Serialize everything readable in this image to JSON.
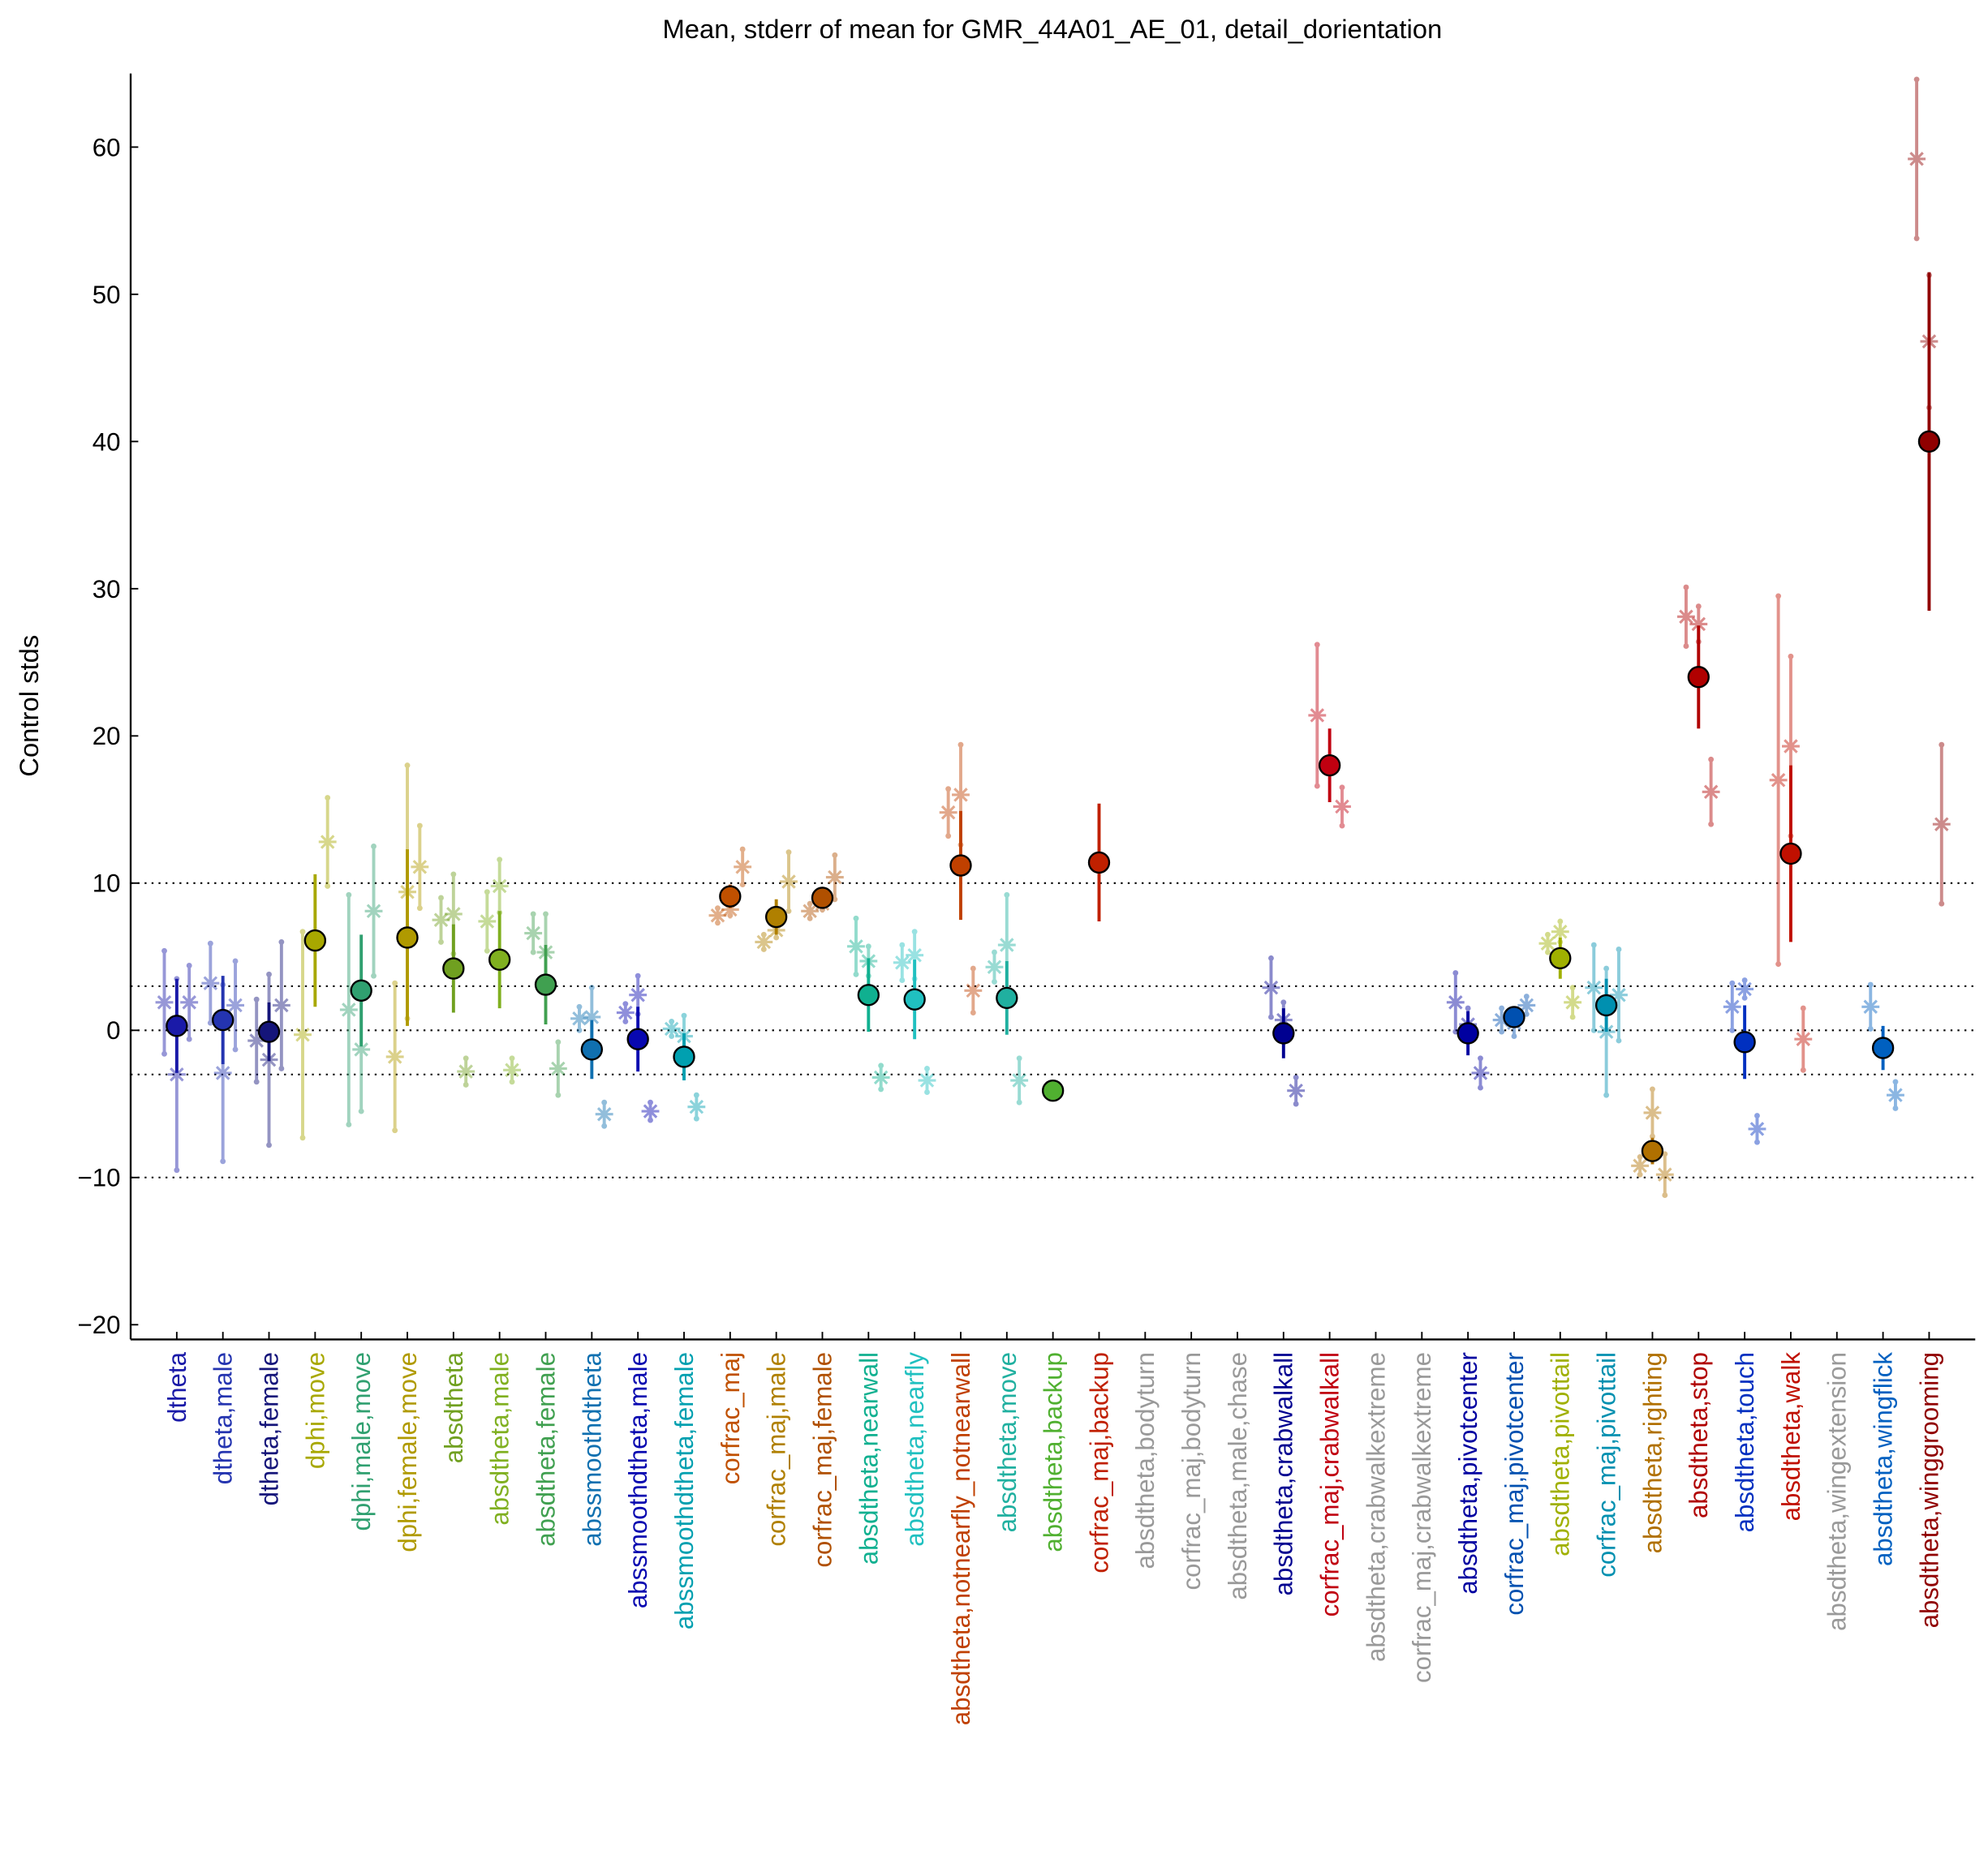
{
  "chart_data": {
    "type": "errorbar",
    "title": "Mean, stderr of mean for GMR_44A01_AE_01, detail_dorientation",
    "ylabel": "Control stds",
    "categories": [
      "dtheta",
      "dtheta,male",
      "dtheta,female",
      "dphi,move",
      "dphi,male,move",
      "dphi,female,move",
      "absdtheta",
      "absdtheta,male",
      "absdtheta,female",
      "abssmoothdtheta",
      "abssmoothdtheta,male",
      "abssmoothdtheta,female",
      "corfrac_maj",
      "corfrac_maj,male",
      "corfrac_maj,female",
      "absdtheta,nearwall",
      "absdtheta,nearfly",
      "absdtheta,notnearfly_notnearwall",
      "absdtheta,move",
      "absdtheta,backup",
      "corfrac_maj,backup",
      "absdtheta,bodyturn",
      "corfrac_maj,bodyturn",
      "absdtheta,male,chase",
      "absdtheta,crabwalkall",
      "corfrac_maj,crabwalkall",
      "absdtheta,crabwalkextreme",
      "corfrac_maj,crabwalkextreme",
      "absdtheta,pivotcenter",
      "corfrac_maj,pivotcenter",
      "absdtheta,pivottail",
      "corfrac_maj,pivottail",
      "absdtheta,righting",
      "absdtheta,stop",
      "absdtheta,touch",
      "absdtheta,walk",
      "absdtheta,wingextension",
      "absdtheta,wingflick",
      "absdtheta,winggrooming"
    ],
    "x": [
      1,
      2,
      3,
      4,
      5,
      6,
      7,
      8,
      9,
      10,
      11,
      12,
      13,
      14,
      15,
      16,
      17,
      18,
      19,
      20,
      21,
      22,
      23,
      24,
      25,
      26,
      27,
      28,
      29,
      30,
      31,
      32,
      33,
      34,
      35,
      36,
      37,
      38,
      39
    ],
    "colors": [
      "#1a1aa8",
      "#2434b0",
      "#15157a",
      "#a8a800",
      "#30a070",
      "#b09a00",
      "#70a020",
      "#80b020",
      "#40a050",
      "#1070b0",
      "#0808b0",
      "#00a0b0",
      "#c05000",
      "#b08000",
      "#b05000",
      "#10b090",
      "#20c0c0",
      "#c04000",
      "#20b0a0",
      "#50b030",
      "#c02000",
      "#999999",
      "#999999",
      "#999999",
      "#000090",
      "#c00010",
      "#999999",
      "#999999",
      "#0000a0",
      "#0050b0",
      "#a0b000",
      "#0090b0",
      "#b07000",
      "#b00000",
      "#0030c0",
      "#c01000",
      "#999999",
      "#0060c0",
      "#900000"
    ],
    "series": [
      {
        "marker": "asterisk",
        "values": [
          1.9,
          3.2,
          -0.7,
          -0.3,
          1.4,
          -1.8,
          7.5,
          7.4,
          6.6,
          0.8,
          1.2,
          0.1,
          7.8,
          6.0,
          8.1,
          5.7,
          4.6,
          14.8,
          4.3,
          null,
          null,
          null,
          null,
          null,
          2.9,
          21.4,
          null,
          null,
          1.9,
          0.7,
          5.9,
          2.9,
          -9.2,
          28.1,
          1.6,
          17.0,
          null,
          1.6,
          59.2
        ],
        "errors": [
          3.5,
          2.7,
          2.8,
          7,
          7.8,
          5,
          1.5,
          2,
          1.3,
          0.8,
          0.6,
          0.5,
          0.5,
          0.5,
          0.5,
          1.9,
          1.2,
          1.6,
          1,
          null,
          null,
          null,
          null,
          null,
          2,
          4.8,
          null,
          null,
          2,
          0.8,
          0.6,
          2.9,
          0.6,
          2,
          1.6,
          12.5,
          null,
          1.5,
          5.4
        ]
      },
      {
        "marker": "asterisk",
        "values": [
          -3.0,
          -2.9,
          -2.0,
          null,
          -1.3,
          9.4,
          7.9,
          9.8,
          5.3,
          0.9,
          2.4,
          -0.4,
          8.2,
          6.8,
          8.6,
          4.7,
          5.1,
          16.0,
          5.8,
          null,
          null,
          null,
          null,
          null,
          0.7,
          null,
          null,
          null,
          0.4,
          0.5,
          6.7,
          -0.1,
          -5.6,
          27.6,
          2.8,
          19.3,
          null,
          null,
          46.8
        ],
        "errors": [
          6.5,
          6,
          5.8,
          null,
          4.2,
          8.6,
          2.7,
          1.8,
          2.6,
          2,
          1.3,
          1.4,
          0.4,
          0.5,
          0.4,
          1,
          1.6,
          3.4,
          3.4,
          null,
          null,
          null,
          null,
          null,
          1.2,
          null,
          null,
          null,
          1.1,
          0.9,
          0.7,
          4.3,
          1.6,
          1.2,
          0.6,
          6.1,
          null,
          null,
          4.5
        ]
      },
      {
        "marker": "asterisk",
        "values": [
          1.9,
          1.7,
          1.7,
          12.8,
          8.1,
          11.1,
          -2.8,
          -2.7,
          -2.6,
          -5.7,
          -5.5,
          -5.2,
          11.1,
          10.1,
          10.4,
          -3.2,
          -3.4,
          2.7,
          -3.4,
          null,
          null,
          null,
          null,
          null,
          -4.1,
          15.2,
          null,
          null,
          -2.9,
          1.7,
          1.9,
          2.4,
          -9.8,
          16.2,
          -6.7,
          -0.6,
          null,
          -4.4,
          14.0
        ],
        "errors": [
          2.5,
          3,
          4.3,
          3,
          4.4,
          2.8,
          0.9,
          0.8,
          1.8,
          0.8,
          0.6,
          0.8,
          1.2,
          2,
          1.5,
          0.8,
          0.8,
          1.5,
          1.5,
          null,
          null,
          null,
          null,
          null,
          0.9,
          1.3,
          null,
          null,
          1,
          0.6,
          1,
          3.1,
          1.4,
          2.2,
          0.9,
          2.1,
          null,
          0.9,
          5.4
        ]
      },
      {
        "marker": "circle",
        "values": [
          0.3,
          0.7,
          -0.1,
          6.1,
          2.7,
          6.3,
          4.2,
          4.8,
          3.1,
          -1.3,
          -0.6,
          -1.8,
          9.1,
          7.7,
          9.0,
          2.4,
          2.1,
          11.2,
          2.2,
          -4.1,
          11.4,
          null,
          null,
          null,
          -0.2,
          18.0,
          null,
          null,
          -0.2,
          0.9,
          4.9,
          1.7,
          -8.2,
          24.0,
          -0.8,
          12.0,
          null,
          -1.2,
          40.0
        ],
        "errors": [
          3.2,
          3,
          2,
          4.5,
          3.8,
          6,
          3,
          3.3,
          2.7,
          2,
          2.2,
          1.6,
          0.8,
          1.2,
          0.7,
          2.5,
          2.7,
          3.7,
          2.5,
          0.5,
          4,
          null,
          null,
          null,
          1.7,
          2.5,
          null,
          null,
          1.5,
          0.5,
          1.4,
          1.8,
          0.9,
          3.5,
          2.5,
          6,
          null,
          1.5,
          11.5
        ]
      }
    ],
    "xlim": [
      0,
      40
    ],
    "ylim": [
      -21,
      65
    ],
    "yticks": [
      {
        "value": -20,
        "label": "−20"
      },
      {
        "value": -10,
        "label": "−10"
      },
      0,
      10,
      20,
      30,
      40,
      50,
      60
    ],
    "hlines": [
      -10,
      -3,
      0,
      3,
      10
    ]
  }
}
